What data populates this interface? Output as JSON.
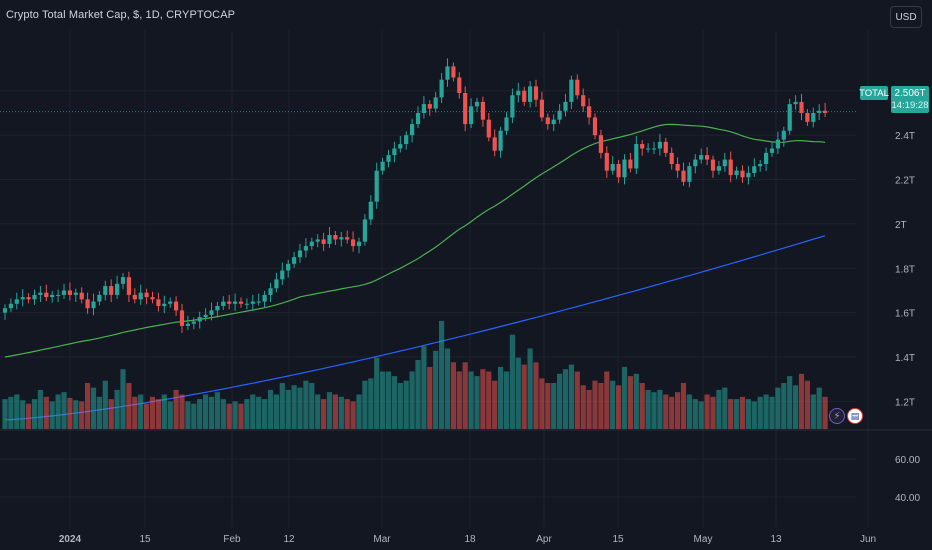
{
  "header": {
    "title": "Crypto Total Market Cap, $, 1D, CRYPTOCAP",
    "currency": "USD"
  },
  "price_label": {
    "ticker": "TOTAL",
    "price": "2.506T",
    "countdown": "14:19:28"
  },
  "colors": {
    "background": "#131722",
    "up": "#26a69a",
    "down": "#ef5350",
    "ma_short": "#4caf50",
    "ma_long": "#2962ff"
  },
  "icons": {
    "indicator": "lightning-icon",
    "event": "us-flag-icon"
  },
  "chart_data": {
    "type": "candlestick",
    "y_axis_labels": [
      "2.6T",
      "2.4T",
      "2.2T",
      "2T",
      "1.8T",
      "1.6T",
      "1.4T",
      "1.2T"
    ],
    "y_range": [
      1.08,
      2.82
    ],
    "volume_axis_labels": [
      "60.00",
      "40.00"
    ],
    "x_axis_labels": [
      "2024",
      "15",
      "Feb",
      "12",
      "Mar",
      "18",
      "Apr",
      "15",
      "May",
      "13",
      "Jun"
    ],
    "grid": true,
    "current_price": 2.506,
    "closes": [
      1.62,
      1.64,
      1.66,
      1.67,
      1.66,
      1.68,
      1.69,
      1.67,
      1.68,
      1.68,
      1.7,
      1.68,
      1.69,
      1.66,
      1.62,
      1.65,
      1.68,
      1.72,
      1.68,
      1.73,
      1.76,
      1.68,
      1.66,
      1.69,
      1.67,
      1.66,
      1.63,
      1.64,
      1.65,
      1.61,
      1.54,
      1.55,
      1.56,
      1.58,
      1.59,
      1.61,
      1.63,
      1.65,
      1.64,
      1.65,
      1.64,
      1.64,
      1.65,
      1.65,
      1.68,
      1.71,
      1.75,
      1.79,
      1.82,
      1.85,
      1.88,
      1.9,
      1.92,
      1.93,
      1.91,
      1.95,
      1.93,
      1.94,
      1.93,
      1.9,
      1.92,
      2.02,
      2.1,
      2.24,
      2.28,
      2.31,
      2.34,
      2.36,
      2.4,
      2.45,
      2.5,
      2.54,
      2.52,
      2.57,
      2.65,
      2.71,
      2.66,
      2.59,
      2.45,
      2.53,
      2.55,
      2.47,
      2.39,
      2.33,
      2.42,
      2.48,
      2.58,
      2.6,
      2.55,
      2.62,
      2.56,
      2.48,
      2.45,
      2.47,
      2.51,
      2.55,
      2.65,
      2.58,
      2.53,
      2.48,
      2.4,
      2.32,
      2.24,
      2.27,
      2.21,
      2.29,
      2.25,
      2.36,
      2.34,
      2.34,
      2.34,
      2.37,
      2.32,
      2.27,
      2.24,
      2.19,
      2.26,
      2.29,
      2.31,
      2.29,
      2.24,
      2.26,
      2.29,
      2.22,
      2.24,
      2.21,
      2.23,
      2.26,
      2.27,
      2.32,
      2.34,
      2.38,
      2.42,
      2.54,
      2.55,
      2.5,
      2.46,
      2.5,
      2.51,
      2.5
    ],
    "volumes": [
      0.26,
      0.28,
      0.3,
      0.25,
      0.22,
      0.26,
      0.34,
      0.28,
      0.24,
      0.3,
      0.32,
      0.27,
      0.25,
      0.24,
      0.4,
      0.36,
      0.28,
      0.42,
      0.26,
      0.34,
      0.52,
      0.4,
      0.28,
      0.3,
      0.22,
      0.28,
      0.26,
      0.3,
      0.24,
      0.34,
      0.3,
      0.24,
      0.22,
      0.26,
      0.3,
      0.28,
      0.32,
      0.26,
      0.22,
      0.24,
      0.22,
      0.26,
      0.3,
      0.28,
      0.26,
      0.34,
      0.3,
      0.4,
      0.34,
      0.38,
      0.36,
      0.42,
      0.4,
      0.3,
      0.26,
      0.32,
      0.3,
      0.28,
      0.26,
      0.24,
      0.3,
      0.42,
      0.44,
      0.62,
      0.5,
      0.5,
      0.46,
      0.4,
      0.42,
      0.5,
      0.6,
      0.72,
      0.54,
      0.68,
      0.94,
      0.7,
      0.58,
      0.5,
      0.58,
      0.5,
      0.46,
      0.52,
      0.5,
      0.42,
      0.54,
      0.5,
      0.82,
      0.62,
      0.56,
      0.7,
      0.58,
      0.44,
      0.4,
      0.4,
      0.48,
      0.52,
      0.56,
      0.5,
      0.38,
      0.34,
      0.42,
      0.4,
      0.5,
      0.42,
      0.38,
      0.54,
      0.46,
      0.48,
      0.4,
      0.34,
      0.32,
      0.34,
      0.3,
      0.28,
      0.32,
      0.4,
      0.3,
      0.26,
      0.24,
      0.3,
      0.28,
      0.34,
      0.36,
      0.26,
      0.26,
      0.28,
      0.26,
      0.24,
      0.28,
      0.3,
      0.28,
      0.36,
      0.4,
      0.46,
      0.38,
      0.48,
      0.42,
      0.3,
      0.36,
      0.28
    ]
  }
}
